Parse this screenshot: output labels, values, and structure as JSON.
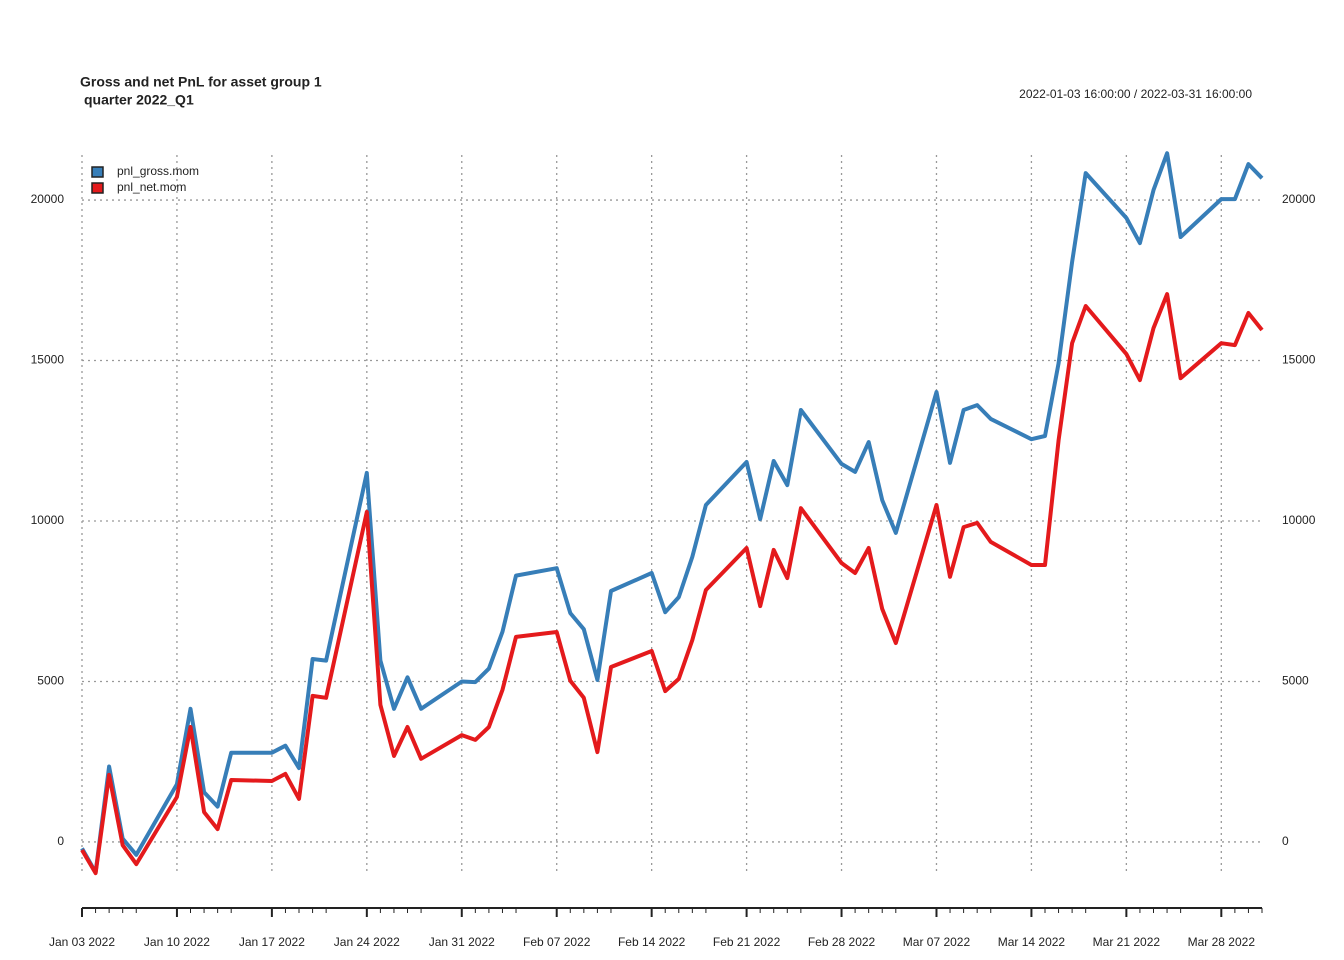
{
  "chart_data": {
    "type": "line",
    "title": [
      "Gross and net PnL for asset group 1",
      "quarter 2022_Q1"
    ],
    "subtitle": "2022-01-03 16:00:00 / 2022-03-31 16:00:00",
    "x": [
      "2022-01-03",
      "2022-01-04",
      "2022-01-05",
      "2022-01-06",
      "2022-01-07",
      "2022-01-10",
      "2022-01-11",
      "2022-01-12",
      "2022-01-13",
      "2022-01-14",
      "2022-01-17",
      "2022-01-18",
      "2022-01-19",
      "2022-01-20",
      "2022-01-21",
      "2022-01-24",
      "2022-01-25",
      "2022-01-26",
      "2022-01-27",
      "2022-01-28",
      "2022-01-31",
      "2022-02-01",
      "2022-02-02",
      "2022-02-03",
      "2022-02-04",
      "2022-02-07",
      "2022-02-08",
      "2022-02-09",
      "2022-02-10",
      "2022-02-11",
      "2022-02-14",
      "2022-02-15",
      "2022-02-16",
      "2022-02-17",
      "2022-02-18",
      "2022-02-21",
      "2022-02-22",
      "2022-02-23",
      "2022-02-24",
      "2022-02-25",
      "2022-02-28",
      "2022-03-01",
      "2022-03-02",
      "2022-03-03",
      "2022-03-04",
      "2022-03-07",
      "2022-03-08",
      "2022-03-09",
      "2022-03-10",
      "2022-03-11",
      "2022-03-14",
      "2022-03-15",
      "2022-03-16",
      "2022-03-17",
      "2022-03-18",
      "2022-03-21",
      "2022-03-22",
      "2022-03-23",
      "2022-03-24",
      "2022-03-25",
      "2022-03-28",
      "2022-03-29",
      "2022-03-30",
      "2022-03-31"
    ],
    "series": [
      {
        "name": "pnl_gross.mom",
        "color": "#377eb8",
        "values": [
          -200,
          -950,
          2350,
          100,
          -400,
          1800,
          4150,
          1550,
          1100,
          2780,
          2780,
          3000,
          2300,
          5700,
          5650,
          11500,
          5650,
          4150,
          5130,
          4150,
          5000,
          4980,
          5400,
          6550,
          8300,
          8530,
          7130,
          6630,
          5050,
          7820,
          8380,
          7160,
          7630,
          8880,
          10500,
          11840,
          10060,
          11870,
          11120,
          13460,
          11780,
          11530,
          12460,
          10650,
          9630,
          14020,
          11810,
          13460,
          13610,
          13180,
          12550,
          12650,
          14920,
          18070,
          20840,
          19440,
          18660,
          20310,
          21460,
          18850,
          20030,
          20030,
          21120,
          20680
        ]
      },
      {
        "name": "pnl_net.mom",
        "color": "#e41a1c",
        "values": [
          -250,
          -970,
          2090,
          -100,
          -690,
          1400,
          3580,
          930,
          400,
          1930,
          1900,
          2120,
          1340,
          4550,
          4490,
          10280,
          4270,
          2680,
          3580,
          2590,
          3330,
          3180,
          3580,
          4740,
          6390,
          6540,
          5020,
          4490,
          2800,
          5450,
          5950,
          4700,
          5080,
          6290,
          7850,
          9160,
          7350,
          9100,
          8220,
          10400,
          8690,
          8380,
          9160,
          7260,
          6200,
          10500,
          8260,
          9810,
          9940,
          9350,
          8630,
          8630,
          12520,
          15540,
          16700,
          15200,
          14390,
          16010,
          17070,
          14450,
          15540,
          15480,
          16480,
          15950
        ]
      }
    ],
    "xlim": [
      "2022-01-03",
      "2022-03-31"
    ],
    "xticks": [
      {
        "value": "2022-01-03",
        "label": "Jan 03 2022"
      },
      {
        "value": "2022-01-10",
        "label": "Jan 10 2022"
      },
      {
        "value": "2022-01-17",
        "label": "Jan 17 2022"
      },
      {
        "value": "2022-01-24",
        "label": "Jan 24 2022"
      },
      {
        "value": "2022-01-31",
        "label": "Jan 31 2022"
      },
      {
        "value": "2022-02-07",
        "label": "Feb 07 2022"
      },
      {
        "value": "2022-02-14",
        "label": "Feb 14 2022"
      },
      {
        "value": "2022-02-21",
        "label": "Feb 21 2022"
      },
      {
        "value": "2022-02-28",
        "label": "Feb 28 2022"
      },
      {
        "value": "2022-03-07",
        "label": "Mar 07 2022"
      },
      {
        "value": "2022-03-14",
        "label": "Mar 14 2022"
      },
      {
        "value": "2022-03-21",
        "label": "Mar 21 2022"
      },
      {
        "value": "2022-03-28",
        "label": "Mar 28 2022"
      }
    ],
    "ylim": [
      -1030,
      21560
    ],
    "yticks": [
      0,
      5000,
      10000,
      15000,
      20000
    ],
    "grid": true,
    "legend": "top-left"
  }
}
